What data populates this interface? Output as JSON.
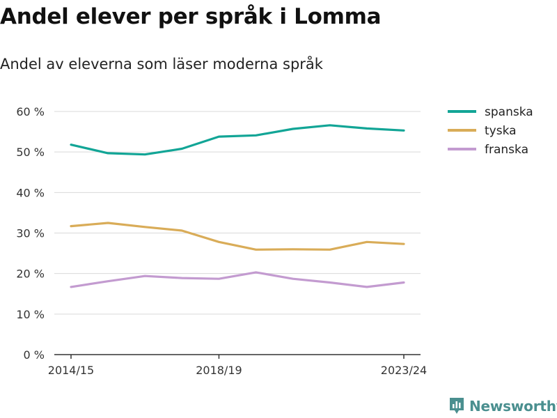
{
  "title": "Andel elever per språk i Lomma",
  "subtitle": "Andel av eleverna som läser moderna språk",
  "brand": "Newsworthy",
  "colors": {
    "spanska": "#12a596",
    "tyska": "#d9ac58",
    "franska": "#c39bd0"
  },
  "chart_data": {
    "type": "line",
    "title": "Andel elever per språk i Lomma",
    "subtitle": "Andel av eleverna som läser moderna språk",
    "xlabel": "",
    "ylabel": "",
    "x": [
      "2014/15",
      "2015/16",
      "2016/17",
      "2017/18",
      "2018/19",
      "2019/20",
      "2020/21",
      "2021/22",
      "2022/23",
      "2023/24"
    ],
    "x_tick_labels": [
      "2014/15",
      "2018/19",
      "2023/24"
    ],
    "y_ticks": [
      0,
      10,
      20,
      30,
      40,
      50,
      60
    ],
    "y_tick_labels": [
      "0 %",
      "10 %",
      "20 %",
      "30 %",
      "40 %",
      "50 %",
      "60 %"
    ],
    "ylim": [
      0,
      60
    ],
    "grid": true,
    "legend_position": "right",
    "series": [
      {
        "name": "spanska",
        "color": "#12a596",
        "values": [
          51.8,
          49.7,
          49.4,
          50.8,
          53.8,
          54.1,
          55.7,
          56.6,
          55.8,
          55.3
        ]
      },
      {
        "name": "tyska",
        "color": "#d9ac58",
        "values": [
          31.7,
          32.5,
          31.5,
          30.6,
          27.8,
          25.9,
          26.0,
          25.9,
          27.8,
          27.3
        ]
      },
      {
        "name": "franska",
        "color": "#c39bd0",
        "values": [
          16.7,
          18.1,
          19.4,
          18.9,
          18.7,
          20.3,
          18.7,
          17.8,
          16.7,
          17.8
        ]
      }
    ]
  }
}
